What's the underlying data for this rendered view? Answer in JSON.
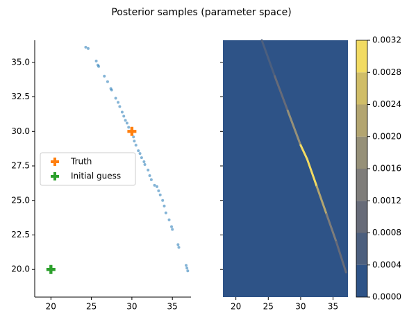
{
  "chart_data": [
    {
      "type": "scatter",
      "title": "Posterior samples (parameter space)",
      "xlim": [
        18.0,
        37.3
      ],
      "ylim": [
        18.0,
        36.6
      ],
      "xticks": [
        20,
        25,
        30,
        35
      ],
      "yticks": [
        {
          "value": 20,
          "label": "20.0"
        },
        22.5,
        {
          "value": 25,
          "label": "25.0"
        },
        27.5,
        {
          "value": 30,
          "label": "30.0"
        },
        32.5,
        {
          "value": 35,
          "label": "35.0"
        }
      ],
      "samples": {
        "color": "#1f77b4",
        "x": [
          24.3,
          24.6,
          25.6,
          25.8,
          25.9,
          26.6,
          27.0,
          27.4,
          27.5,
          28.0,
          28.3,
          28.5,
          28.8,
          29.0,
          29.2,
          29.4,
          29.6,
          29.9,
          30.2,
          30.3,
          30.5,
          30.8,
          31.0,
          31.2,
          31.5,
          31.6,
          32.0,
          32.2,
          32.4,
          32.8,
          33.1,
          33.3,
          33.5,
          33.8,
          34.0,
          34.2,
          34.6,
          34.9,
          35.0,
          35.7,
          35.8,
          36.7,
          36.8,
          36.9
        ],
        "y": [
          36.1,
          36.0,
          35.1,
          34.8,
          34.7,
          34.0,
          33.6,
          33.1,
          33.0,
          32.4,
          32.1,
          31.8,
          31.4,
          31.1,
          30.8,
          30.6,
          30.3,
          30.0,
          29.6,
          29.3,
          29.0,
          28.6,
          28.4,
          28.1,
          27.8,
          27.6,
          27.2,
          26.8,
          26.5,
          26.1,
          26.0,
          25.7,
          25.4,
          25.0,
          24.6,
          24.1,
          23.6,
          23.1,
          22.9,
          21.8,
          21.6,
          20.3,
          20.1,
          19.9
        ]
      },
      "series": [
        {
          "name": "Truth",
          "color": "#ff7f0e",
          "x": [
            30
          ],
          "y": [
            30
          ]
        },
        {
          "name": "Initial guess",
          "color": "#2ca02c",
          "x": [
            20
          ],
          "y": [
            20
          ]
        }
      ],
      "legend": "center left"
    },
    {
      "type": "contour",
      "xlim": [
        18.0,
        37.3
      ],
      "ylim": [
        18.0,
        36.6
      ],
      "xticks": [
        20,
        25,
        30,
        35
      ],
      "yticks": [
        20,
        22.5,
        25,
        27.5,
        30,
        32.5,
        35
      ],
      "levels": [
        {
          "value": 0,
          "label": "0.0000"
        },
        0.0004,
        0.0008,
        0.0012,
        0.0016,
        {
          "value": 0.002,
          "label": "0.0020"
        },
        0.0024,
        0.0028,
        0.0032
      ],
      "colors": [
        "#2e5387",
        "#4c5f7e",
        "#676b78",
        "#7f7d7a",
        "#969078",
        "#b3a570",
        "#d0bd67",
        "#f2db62"
      ],
      "ridge": {
        "x": [
          24.0,
          26.0,
          28.0,
          30.0,
          31.0,
          32.5,
          34.0,
          35.5,
          37.0
        ],
        "y": [
          36.6,
          34.0,
          31.5,
          29.0,
          28.0,
          26.0,
          24.0,
          22.0,
          19.8
        ],
        "level": [
          0.0004,
          0.0008,
          0.0016,
          0.0028,
          0.003,
          0.002,
          0.0012,
          0.0008,
          0.0004
        ]
      }
    }
  ]
}
